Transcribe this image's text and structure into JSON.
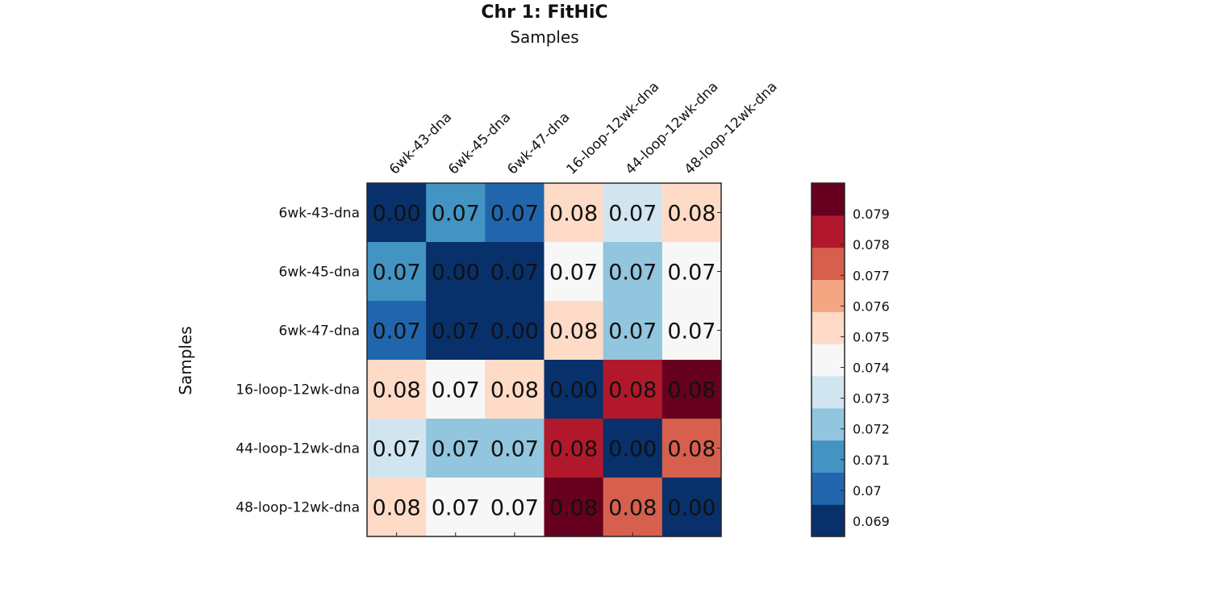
{
  "chart_data": {
    "type": "heatmap",
    "title": "Chr 1: FitHiC",
    "xlabel": "Samples",
    "ylabel": "Samples",
    "x_categories": [
      "6wk-43-dna",
      "6wk-45-dna",
      "6wk-47-dna",
      "16-loop-12wk-dna",
      "44-loop-12wk-dna",
      "48-loop-12wk-dna"
    ],
    "y_categories": [
      "6wk-43-dna",
      "6wk-45-dna",
      "6wk-47-dna",
      "16-loop-12wk-dna",
      "44-loop-12wk-dna",
      "48-loop-12wk-dna"
    ],
    "values": [
      [
        0.0,
        0.0712,
        0.0703,
        0.0752,
        0.0732,
        0.0753
      ],
      [
        0.0712,
        0.0,
        0.0691,
        0.0743,
        0.0722,
        0.0745
      ],
      [
        0.0703,
        0.0691,
        0.0,
        0.0751,
        0.0723,
        0.0741
      ],
      [
        0.0752,
        0.0743,
        0.0751,
        0.0,
        0.0783,
        0.0795
      ],
      [
        0.0732,
        0.0722,
        0.0721,
        0.0783,
        0.0,
        0.0772
      ],
      [
        0.0753,
        0.0746,
        0.0742,
        0.0795,
        0.0772,
        0.0
      ]
    ],
    "value_labels": [
      [
        "0.00",
        "0.07",
        "0.07",
        "0.08",
        "0.07",
        "0.08"
      ],
      [
        "0.07",
        "0.00",
        "0.07",
        "0.07",
        "0.07",
        "0.07"
      ],
      [
        "0.07",
        "0.07",
        "0.00",
        "0.08",
        "0.07",
        "0.07"
      ],
      [
        "0.08",
        "0.07",
        "0.08",
        "0.00",
        "0.08",
        "0.08"
      ],
      [
        "0.07",
        "0.07",
        "0.07",
        "0.08",
        "0.00",
        "0.08"
      ],
      [
        "0.08",
        "0.07",
        "0.07",
        "0.08",
        "0.08",
        "0.00"
      ]
    ],
    "colorbar": {
      "range": [
        0.0685,
        0.08
      ],
      "ticks": [
        0.069,
        0.07,
        0.071,
        0.072,
        0.073,
        0.074,
        0.075,
        0.076,
        0.077,
        0.078,
        0.079
      ],
      "tick_labels": [
        "0.069",
        "0.07",
        "0.071",
        "0.072",
        "0.073",
        "0.074",
        "0.075",
        "0.076",
        "0.077",
        "0.078",
        "0.079"
      ],
      "colors": [
        "#08306b",
        "#2166ac",
        "#4393c3",
        "#92c5de",
        "#d1e5f0",
        "#f7f7f7",
        "#fddbc7",
        "#f4a582",
        "#d6604d",
        "#b2182b",
        "#67001f"
      ]
    },
    "colormap": "RdBu reversed, 11 discrete levels"
  }
}
